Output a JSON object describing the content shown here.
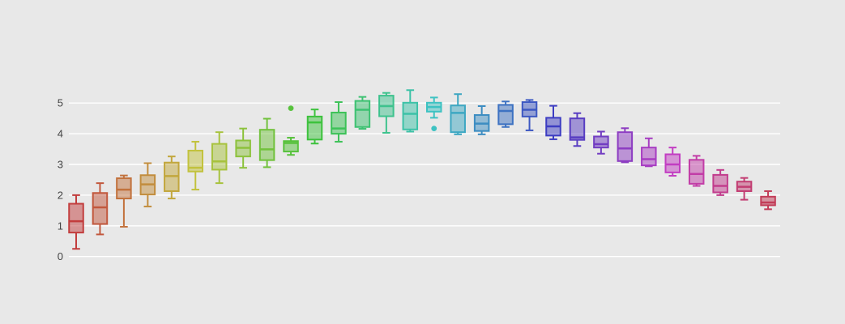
{
  "chart_data": {
    "type": "box",
    "title": "",
    "xlabel": "",
    "ylabel": "",
    "orientation": "vertical",
    "ylim": [
      -0.35,
      5.65
    ],
    "yticks": [
      0,
      1,
      2,
      3,
      4,
      5
    ],
    "ytick_labels": [
      "0",
      "1",
      "2",
      "3",
      "4",
      "5"
    ],
    "xtick_labels": [],
    "grid": "horizontal",
    "legend_position": "none",
    "colors": {
      "background": "#e8e8e8",
      "gridline": "#ffffff",
      "tick_text": "#444444"
    },
    "series": [
      {
        "low": 0.25,
        "q1": 0.78,
        "median": 1.15,
        "q3": 1.72,
        "high": 2.0,
        "outliers": [],
        "color": "#c23d3d"
      },
      {
        "low": 0.72,
        "q1": 1.06,
        "median": 1.6,
        "q3": 2.07,
        "high": 2.39,
        "outliers": [],
        "color": "#c2583d"
      },
      {
        "low": 0.97,
        "q1": 1.89,
        "median": 2.18,
        "q3": 2.55,
        "high": 2.64,
        "outliers": [],
        "color": "#c2723d"
      },
      {
        "low": 1.63,
        "q1": 2.02,
        "median": 2.35,
        "q3": 2.65,
        "high": 3.04,
        "outliers": [],
        "color": "#c28d3d"
      },
      {
        "low": 1.89,
        "q1": 2.13,
        "median": 2.62,
        "q3": 3.06,
        "high": 3.26,
        "outliers": [],
        "color": "#c2a73d"
      },
      {
        "low": 2.18,
        "q1": 2.77,
        "median": 2.89,
        "q3": 3.45,
        "high": 3.74,
        "outliers": [],
        "color": "#c2c23d"
      },
      {
        "low": 2.39,
        "q1": 2.83,
        "median": 3.1,
        "q3": 3.67,
        "high": 4.05,
        "outliers": [],
        "color": "#a7c23d"
      },
      {
        "low": 2.89,
        "q1": 3.26,
        "median": 3.54,
        "q3": 3.78,
        "high": 4.17,
        "outliers": [],
        "color": "#8dc23d"
      },
      {
        "low": 2.91,
        "q1": 3.14,
        "median": 3.49,
        "q3": 4.13,
        "high": 4.49,
        "outliers": [],
        "color": "#72c23d"
      },
      {
        "low": 3.31,
        "q1": 3.42,
        "median": 3.7,
        "q3": 3.76,
        "high": 3.87,
        "outliers": [
          4.83
        ],
        "color": "#58c23d"
      },
      {
        "low": 3.68,
        "q1": 3.81,
        "median": 4.37,
        "q3": 4.56,
        "high": 4.79,
        "outliers": [],
        "color": "#3dc23d"
      },
      {
        "low": 3.74,
        "q1": 4.0,
        "median": 4.17,
        "q3": 4.69,
        "high": 5.03,
        "outliers": [],
        "color": "#3dc258"
      },
      {
        "low": 4.16,
        "q1": 4.22,
        "median": 4.78,
        "q3": 5.07,
        "high": 5.2,
        "outliers": [],
        "color": "#3dc272"
      },
      {
        "low": 4.03,
        "q1": 4.57,
        "median": 4.9,
        "q3": 5.24,
        "high": 5.33,
        "outliers": [],
        "color": "#3dc28d"
      },
      {
        "low": 4.07,
        "q1": 4.14,
        "median": 4.65,
        "q3": 5.01,
        "high": 5.42,
        "outliers": [],
        "color": "#3dc2a7"
      },
      {
        "low": 4.52,
        "q1": 4.72,
        "median": 4.87,
        "q3": 5.01,
        "high": 5.18,
        "outliers": [
          4.17
        ],
        "color": "#3dc2c2"
      },
      {
        "low": 3.98,
        "q1": 4.05,
        "median": 4.68,
        "q3": 4.92,
        "high": 5.29,
        "outliers": [],
        "color": "#3da7c2"
      },
      {
        "low": 3.98,
        "q1": 4.09,
        "median": 4.33,
        "q3": 4.61,
        "high": 4.9,
        "outliers": [],
        "color": "#3d8dc2"
      },
      {
        "low": 4.22,
        "q1": 4.31,
        "median": 4.74,
        "q3": 4.94,
        "high": 5.05,
        "outliers": [],
        "color": "#3d72c2"
      },
      {
        "low": 4.11,
        "q1": 4.56,
        "median": 4.78,
        "q3": 5.03,
        "high": 5.1,
        "outliers": [],
        "color": "#3d58c2"
      },
      {
        "low": 3.82,
        "q1": 3.94,
        "median": 4.24,
        "q3": 4.52,
        "high": 4.91,
        "outliers": [],
        "color": "#3d3dc2"
      },
      {
        "low": 3.6,
        "q1": 3.8,
        "median": 3.88,
        "q3": 4.5,
        "high": 4.67,
        "outliers": [],
        "color": "#583dc2"
      },
      {
        "low": 3.35,
        "q1": 3.55,
        "median": 3.66,
        "q3": 3.91,
        "high": 4.07,
        "outliers": [],
        "color": "#723dc2"
      },
      {
        "low": 3.07,
        "q1": 3.11,
        "median": 3.52,
        "q3": 4.05,
        "high": 4.18,
        "outliers": [],
        "color": "#8d3dc2"
      },
      {
        "low": 2.94,
        "q1": 2.97,
        "median": 3.17,
        "q3": 3.55,
        "high": 3.85,
        "outliers": [],
        "color": "#a73dc2"
      },
      {
        "low": 2.63,
        "q1": 2.74,
        "median": 3.0,
        "q3": 3.33,
        "high": 3.55,
        "outliers": [],
        "color": "#c23dc2"
      },
      {
        "low": 2.3,
        "q1": 2.37,
        "median": 2.69,
        "q3": 3.15,
        "high": 3.28,
        "outliers": [],
        "color": "#c23da7"
      },
      {
        "low": 2.0,
        "q1": 2.09,
        "median": 2.3,
        "q3": 2.66,
        "high": 2.82,
        "outliers": [],
        "color": "#c23d8d"
      },
      {
        "low": 1.85,
        "q1": 2.13,
        "median": 2.27,
        "q3": 2.44,
        "high": 2.56,
        "outliers": [],
        "color": "#c23d72"
      },
      {
        "low": 1.54,
        "q1": 1.67,
        "median": 1.76,
        "q3": 1.95,
        "high": 2.13,
        "outliers": [],
        "color": "#c23d58"
      }
    ]
  }
}
